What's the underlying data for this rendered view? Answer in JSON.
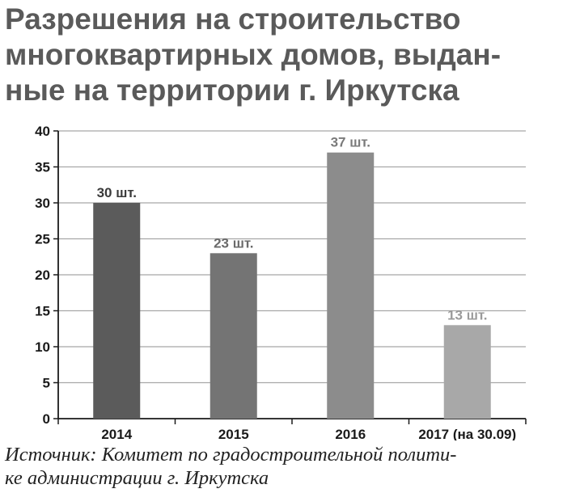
{
  "title_lines": [
    "Разрешения на строительство",
    "многоквартирных домов, выдан-",
    "ные на территории г. Иркутска"
  ],
  "source_lines": [
    "Источник: Комитет по градостроительной полити-",
    "ке администрации г. Иркутска"
  ],
  "colors": {
    "title": "#5a5a5a",
    "gridline": "#a8a8a8",
    "axis": "#1a1a1a",
    "bar_labels": "#8a8a8a"
  },
  "chart_data": {
    "type": "bar",
    "categories": [
      "2014",
      "2015",
      "2016",
      "2017 (на 30.09)"
    ],
    "values": [
      30,
      23,
      37,
      13
    ],
    "data_labels": [
      "30 шт.",
      "23 шт.",
      "37 шт.",
      "13 шт."
    ],
    "bar_colors": [
      "#5b5b5b",
      "#747474",
      "#8c8c8c",
      "#a8a8a8"
    ],
    "label_colors": [
      "#3a3a3a",
      "#6a6a6a",
      "#7a7a7a",
      "#9a9a9a"
    ],
    "y_ticks": [
      0,
      5,
      10,
      15,
      20,
      25,
      30,
      35,
      40
    ],
    "ylim": [
      0,
      40
    ],
    "grid": true,
    "xlabel": "",
    "ylabel": ""
  }
}
